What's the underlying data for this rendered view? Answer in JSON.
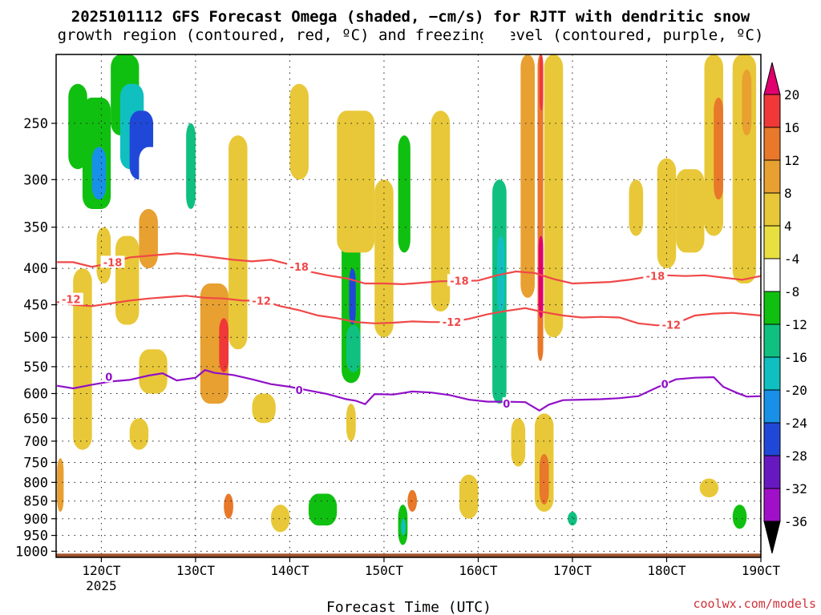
{
  "header": {
    "title_line1": "2025101112 GFS Forecast Omega (shaded, −cm/s) for RJTT with dendritic snow",
    "title_line2": "growth region (contoured, red, ºC) and freezing level (contoured, purple, ºC)"
  },
  "footer": {
    "credit": "coolwx.com/models"
  },
  "chart_data": {
    "type": "heatmap",
    "xlabel": "Forecast Time (UTC)",
    "x_ticks": [
      {
        "t": 120,
        "label": "120CT"
      },
      {
        "t": 130,
        "label": "130CT"
      },
      {
        "t": 140,
        "label": "140CT"
      },
      {
        "t": 150,
        "label": "150CT"
      },
      {
        "t": 160,
        "label": "160CT"
      },
      {
        "t": 170,
        "label": "170CT"
      },
      {
        "t": 180,
        "label": "180CT"
      },
      {
        "t": 190,
        "label": "190CT"
      }
    ],
    "x_sublabel": {
      "t": 120,
      "label": "2025"
    },
    "xlim": [
      115.2,
      190.0
    ],
    "y_scale": "log-pressure",
    "y_ticks": [
      250,
      300,
      350,
      400,
      450,
      500,
      550,
      600,
      650,
      700,
      750,
      800,
      850,
      900,
      950,
      1000
    ],
    "ylim": [
      1020,
      200
    ],
    "colorbar": {
      "ticks": [
        20,
        16,
        12,
        8,
        4,
        -4,
        -8,
        -12,
        -16,
        -20,
        -24,
        -28,
        -32,
        -36
      ],
      "colors": [
        "#e0006e",
        "#f03838",
        "#e8782a",
        "#e8a030",
        "#e8c838",
        "#e8e040",
        "#ffffff",
        "#10c010",
        "#10c080",
        "#10c0c0",
        "#1890e8",
        "#2048d8",
        "#6818c0",
        "#a010c8",
        "#a8a8a8",
        "#000000"
      ]
    },
    "omega_shading": [
      {
        "t0": 115.3,
        "t1": 117.0,
        "p0": 210,
        "p1": 330,
        "v": -8
      },
      {
        "t0": 116.5,
        "t1": 118.5,
        "p0": 220,
        "p1": 290,
        "v": -12
      },
      {
        "t0": 118.0,
        "t1": 121.0,
        "p0": 230,
        "p1": 330,
        "v": -12
      },
      {
        "t0": 119.0,
        "t1": 120.5,
        "p0": 270,
        "p1": 320,
        "v": -24
      },
      {
        "t0": 121.0,
        "t1": 124.0,
        "p0": 200,
        "p1": 260,
        "v": -12
      },
      {
        "t0": 122.0,
        "t1": 124.5,
        "p0": 220,
        "p1": 290,
        "v": -20
      },
      {
        "t0": 123.0,
        "t1": 125.5,
        "p0": 240,
        "p1": 300,
        "v": -28
      },
      {
        "t0": 124.0,
        "t1": 127.0,
        "p0": 270,
        "p1": 330,
        "v": -8
      },
      {
        "t0": 126.0,
        "t1": 128.0,
        "p0": 200,
        "p1": 250,
        "v": -8
      },
      {
        "t0": 128.0,
        "t1": 130.5,
        "p0": 230,
        "p1": 420,
        "v": -8
      },
      {
        "t0": 129.0,
        "t1": 130.0,
        "p0": 250,
        "p1": 330,
        "v": -16
      },
      {
        "t0": 119.8,
        "t1": 120.6,
        "p0": 360,
        "p1": 400,
        "v": 12
      },
      {
        "t0": 119.5,
        "t1": 121.0,
        "p0": 350,
        "p1": 420,
        "v": 4
      },
      {
        "t0": 121.5,
        "t1": 124.0,
        "p0": 360,
        "p1": 480,
        "v": 4
      },
      {
        "t0": 124.0,
        "t1": 126.0,
        "p0": 330,
        "p1": 400,
        "v": 8
      },
      {
        "t0": 130.5,
        "t1": 133.5,
        "p0": 420,
        "p1": 620,
        "v": 8
      },
      {
        "t0": 132.5,
        "t1": 133.5,
        "p0": 470,
        "p1": 560,
        "v": 16
      },
      {
        "t0": 133.5,
        "t1": 135.5,
        "p0": 260,
        "p1": 520,
        "v": 4
      },
      {
        "t0": 116.0,
        "t1": 117.0,
        "p0": 520,
        "p1": 640,
        "v": -8
      },
      {
        "t0": 115.3,
        "t1": 116.0,
        "p0": 740,
        "p1": 880,
        "v": 8
      },
      {
        "t0": 117.0,
        "t1": 119.0,
        "p0": 400,
        "p1": 720,
        "v": 4
      },
      {
        "t0": 124.0,
        "t1": 127.0,
        "p0": 520,
        "p1": 600,
        "v": 4
      },
      {
        "t0": 133.5,
        "t1": 134.5,
        "p0": 620,
        "p1": 760,
        "v": -8
      },
      {
        "t0": 133.0,
        "t1": 134.0,
        "p0": 830,
        "p1": 900,
        "v": 12
      },
      {
        "t0": 136.0,
        "t1": 138.5,
        "p0": 600,
        "p1": 660,
        "v": 4
      },
      {
        "t0": 140.0,
        "t1": 142.0,
        "p0": 600,
        "p1": 680,
        "v": -8
      },
      {
        "t0": 140.0,
        "t1": 142.0,
        "p0": 220,
        "p1": 300,
        "v": 4
      },
      {
        "t0": 143.0,
        "t1": 145.5,
        "p0": 380,
        "p1": 520,
        "v": -8
      },
      {
        "t0": 145.5,
        "t1": 147.5,
        "p0": 360,
        "p1": 580,
        "v": -12
      },
      {
        "t0": 146.3,
        "t1": 147.0,
        "p0": 400,
        "p1": 480,
        "v": -28
      },
      {
        "t0": 146.0,
        "t1": 147.5,
        "p0": 480,
        "p1": 560,
        "v": -16
      },
      {
        "t0": 145.0,
        "t1": 149.0,
        "p0": 240,
        "p1": 380,
        "v": 4
      },
      {
        "t0": 146.0,
        "t1": 147.5,
        "p0": 860,
        "p1": 970,
        "v": -8
      },
      {
        "t0": 142.0,
        "t1": 145.0,
        "p0": 830,
        "p1": 920,
        "v": -12
      },
      {
        "t0": 146.0,
        "t1": 147.0,
        "p0": 620,
        "p1": 700,
        "v": 4
      },
      {
        "t0": 151.0,
        "t1": 153.0,
        "p0": 230,
        "p1": 560,
        "v": -8
      },
      {
        "t0": 151.5,
        "t1": 152.8,
        "p0": 260,
        "p1": 380,
        "v": -12
      },
      {
        "t0": 149.0,
        "t1": 151.0,
        "p0": 300,
        "p1": 500,
        "v": 4
      },
      {
        "t0": 155.0,
        "t1": 157.0,
        "p0": 240,
        "p1": 460,
        "v": 4
      },
      {
        "t0": 151.5,
        "t1": 152.5,
        "p0": 860,
        "p1": 980,
        "v": -12
      },
      {
        "t0": 151.8,
        "t1": 152.3,
        "p0": 900,
        "p1": 950,
        "v": -20
      },
      {
        "t0": 152.5,
        "t1": 153.5,
        "p0": 820,
        "p1": 880,
        "v": 12
      },
      {
        "t0": 158.0,
        "t1": 160.0,
        "p0": 780,
        "p1": 900,
        "v": 4
      },
      {
        "t0": 160.5,
        "t1": 163.5,
        "p0": 180,
        "p1": 640,
        "v": -8
      },
      {
        "t0": 161.5,
        "t1": 163.0,
        "p0": 300,
        "p1": 620,
        "v": -16
      },
      {
        "t0": 162.0,
        "t1": 162.8,
        "p0": 360,
        "p1": 460,
        "v": -20
      },
      {
        "t0": 163.5,
        "t1": 165.0,
        "p0": 650,
        "p1": 760,
        "v": 4
      },
      {
        "t0": 163.0,
        "t1": 164.0,
        "p0": 860,
        "p1": 930,
        "v": -8
      },
      {
        "t0": 164.5,
        "t1": 166.0,
        "p0": 200,
        "p1": 440,
        "v": 8
      },
      {
        "t0": 166.3,
        "t1": 166.9,
        "p0": 200,
        "p1": 540,
        "v": 12
      },
      {
        "t0": 166.4,
        "t1": 166.9,
        "p0": 360,
        "p1": 470,
        "v": 20
      },
      {
        "t0": 166.5,
        "t1": 166.9,
        "p0": 200,
        "p1": 240,
        "v": 16
      },
      {
        "t0": 167.0,
        "t1": 169.0,
        "p0": 200,
        "p1": 500,
        "v": 4
      },
      {
        "t0": 166.0,
        "t1": 168.0,
        "p0": 640,
        "p1": 880,
        "v": 4
      },
      {
        "t0": 166.5,
        "t1": 167.5,
        "p0": 730,
        "p1": 860,
        "v": 12
      },
      {
        "t0": 169.0,
        "t1": 171.0,
        "p0": 860,
        "p1": 960,
        "v": -8
      },
      {
        "t0": 169.5,
        "t1": 170.5,
        "p0": 880,
        "p1": 920,
        "v": -16
      },
      {
        "t0": 170.5,
        "t1": 172.5,
        "p0": 210,
        "p1": 280,
        "v": -8
      },
      {
        "t0": 173.0,
        "t1": 175.0,
        "p0": 270,
        "p1": 360,
        "v": -8
      },
      {
        "t0": 176.0,
        "t1": 177.5,
        "p0": 300,
        "p1": 360,
        "v": 4
      },
      {
        "t0": 179.0,
        "t1": 181.0,
        "p0": 280,
        "p1": 400,
        "v": 4
      },
      {
        "t0": 181.0,
        "t1": 184.0,
        "p0": 290,
        "p1": 380,
        "v": 4
      },
      {
        "t0": 184.0,
        "t1": 186.0,
        "p0": 200,
        "p1": 360,
        "v": 4
      },
      {
        "t0": 185.0,
        "t1": 186.0,
        "p0": 230,
        "p1": 320,
        "v": 12
      },
      {
        "t0": 187.0,
        "t1": 189.5,
        "p0": 200,
        "p1": 420,
        "v": 4
      },
      {
        "t0": 188.0,
        "t1": 189.0,
        "p0": 210,
        "p1": 260,
        "v": 8
      },
      {
        "t0": 178.5,
        "t1": 180.0,
        "p0": 560,
        "p1": 640,
        "v": -8
      },
      {
        "t0": 186.5,
        "t1": 189.0,
        "p0": 800,
        "p1": 880,
        "v": -8
      },
      {
        "t0": 187.0,
        "t1": 188.5,
        "p0": 860,
        "p1": 930,
        "v": -12
      },
      {
        "t0": 183.5,
        "t1": 185.5,
        "p0": 790,
        "p1": 840,
        "v": 4
      },
      {
        "t0": 189.3,
        "t1": 190.0,
        "p0": 680,
        "p1": 760,
        "v": -8
      },
      {
        "t0": 123.0,
        "t1": 125.0,
        "p0": 650,
        "p1": 720,
        "v": 4
      },
      {
        "t0": 138.0,
        "t1": 140.0,
        "p0": 860,
        "p1": 940,
        "v": 4
      }
    ],
    "red_contours": [
      {
        "label": "-18",
        "points": [
          [
            115.3,
            392
          ],
          [
            117,
            392
          ],
          [
            119,
            398
          ],
          [
            121,
            393
          ],
          [
            123,
            386
          ],
          [
            126,
            383
          ],
          [
            128,
            381
          ],
          [
            130,
            383
          ],
          [
            132,
            386
          ],
          [
            134,
            389
          ],
          [
            136,
            391
          ],
          [
            138,
            389
          ],
          [
            140,
            395
          ],
          [
            142,
            404
          ],
          [
            144,
            409
          ],
          [
            146,
            413
          ],
          [
            148,
            420
          ],
          [
            150,
            420
          ],
          [
            152,
            421
          ],
          [
            154,
            419
          ],
          [
            156,
            417
          ],
          [
            158,
            417
          ],
          [
            160,
            416
          ],
          [
            162,
            409
          ],
          [
            164,
            404
          ],
          [
            166,
            406
          ],
          [
            168,
            414
          ],
          [
            170,
            420
          ],
          [
            172,
            419
          ],
          [
            174,
            418
          ],
          [
            176,
            415
          ],
          [
            178,
            411
          ],
          [
            180,
            409
          ],
          [
            182,
            410
          ],
          [
            184,
            409
          ],
          [
            186,
            412
          ],
          [
            188,
            415
          ],
          [
            190,
            410
          ]
        ],
        "label_positions": [
          [
            121.2,
            392
          ],
          [
            141.0,
            398
          ],
          [
            158.0,
            416
          ],
          [
            178.8,
            410
          ]
        ]
      },
      {
        "label": "-12",
        "points": [
          [
            115.3,
            446
          ],
          [
            117,
            450
          ],
          [
            119,
            452
          ],
          [
            121,
            448
          ],
          [
            123,
            444
          ],
          [
            125,
            441
          ],
          [
            127,
            439
          ],
          [
            129,
            437
          ],
          [
            131,
            440
          ],
          [
            133,
            441
          ],
          [
            135,
            444
          ],
          [
            137,
            444
          ],
          [
            139,
            452
          ],
          [
            141,
            458
          ],
          [
            143,
            466
          ],
          [
            145,
            470
          ],
          [
            147,
            476
          ],
          [
            149,
            478
          ],
          [
            151,
            477
          ],
          [
            153,
            475
          ],
          [
            155,
            476
          ],
          [
            157,
            476
          ],
          [
            159,
            471
          ],
          [
            161,
            464
          ],
          [
            163,
            459
          ],
          [
            165,
            455
          ],
          [
            167,
            461
          ],
          [
            169,
            466
          ],
          [
            171,
            469
          ],
          [
            173,
            468
          ],
          [
            175,
            469
          ],
          [
            177,
            478
          ],
          [
            179,
            481
          ],
          [
            181,
            478
          ],
          [
            183,
            466
          ],
          [
            185,
            463
          ],
          [
            187,
            462
          ],
          [
            190,
            466
          ]
        ],
        "label_positions": [
          [
            116.8,
            442
          ],
          [
            137.0,
            444
          ],
          [
            157.2,
            476
          ],
          [
            180.5,
            480
          ]
        ]
      }
    ],
    "freezing_level": {
      "label": "0",
      "points": [
        [
          115.3,
          585
        ],
        [
          117,
          590
        ],
        [
          119,
          583
        ],
        [
          121,
          577
        ],
        [
          123,
          574
        ],
        [
          125,
          566
        ],
        [
          126.5,
          562
        ],
        [
          128,
          575
        ],
        [
          130,
          570
        ],
        [
          131,
          556
        ],
        [
          132,
          561
        ],
        [
          134,
          565
        ],
        [
          136,
          573
        ],
        [
          138,
          582
        ],
        [
          140,
          587
        ],
        [
          142,
          594
        ],
        [
          144,
          601
        ],
        [
          146,
          611
        ],
        [
          147,
          614
        ],
        [
          148,
          621
        ],
        [
          149,
          601
        ],
        [
          151,
          602
        ],
        [
          153,
          596
        ],
        [
          155,
          598
        ],
        [
          157,
          603
        ],
        [
          159,
          612
        ],
        [
          161,
          616
        ],
        [
          163,
          616
        ],
        [
          165,
          617
        ],
        [
          166.5,
          634
        ],
        [
          167.5,
          622
        ],
        [
          169,
          613
        ],
        [
          171,
          612
        ],
        [
          173,
          611
        ],
        [
          175,
          609
        ],
        [
          177,
          605
        ],
        [
          179,
          588
        ],
        [
          181,
          573
        ],
        [
          183,
          570
        ],
        [
          185,
          569
        ],
        [
          186,
          587
        ],
        [
          187.5,
          599
        ],
        [
          188.5,
          606
        ],
        [
          190,
          605
        ]
      ],
      "label_positions": [
        [
          120.8,
          568
        ],
        [
          141.0,
          593
        ],
        [
          163.0,
          620
        ],
        [
          179.8,
          582
        ]
      ]
    }
  }
}
